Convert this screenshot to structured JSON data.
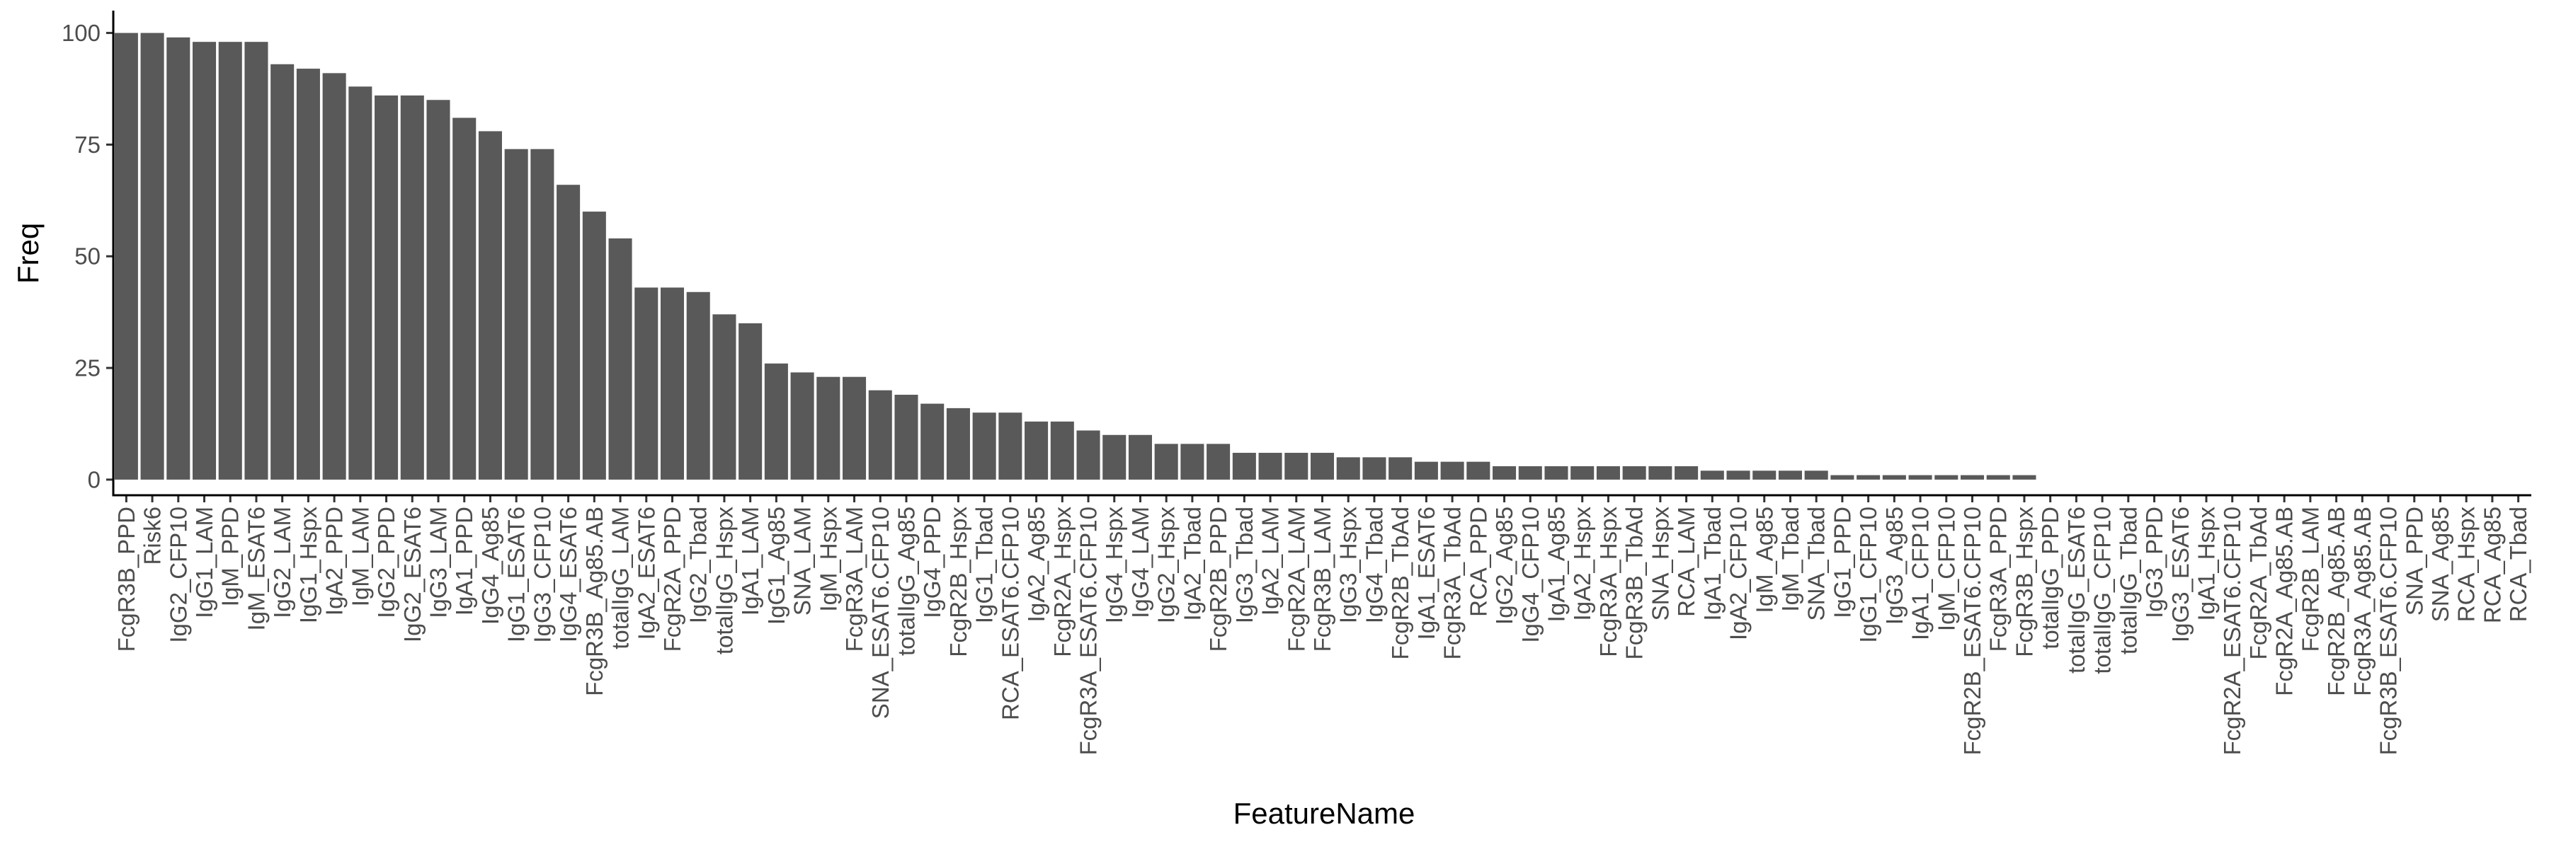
{
  "chart_data": {
    "type": "bar",
    "xlabel": "FeatureName",
    "ylabel": "Freq",
    "ylim": [
      -3.5,
      105
    ],
    "yticks": [
      0,
      25,
      50,
      75,
      100
    ],
    "grid": false,
    "bar_color": "#595959",
    "categories": [
      "FcgR3B_PPD",
      "Risk6",
      "IgG2_CFP10",
      "IgG1_LAM",
      "IgM_PPD",
      "IgM_ESAT6",
      "IgG2_LAM",
      "IgG1_Hspx",
      "IgA2_PPD",
      "IgM_LAM",
      "IgG2_PPD",
      "IgG2_ESAT6",
      "IgG3_LAM",
      "IgA1_PPD",
      "IgG4_Ag85",
      "IgG1_ESAT6",
      "IgG3_CFP10",
      "IgG4_ESAT6",
      "FcgR3B_Ag85.AB",
      "totalIgG_LAM",
      "IgA2_ESAT6",
      "FcgR2A_PPD",
      "IgG2_Tbad",
      "totalIgG_Hspx",
      "IgA1_LAM",
      "IgG1_Ag85",
      "SNA_LAM",
      "IgM_Hspx",
      "FcgR3A_LAM",
      "SNA_ESAT6.CFP10",
      "totalIgG_Ag85",
      "IgG4_PPD",
      "FcgR2B_Hspx",
      "IgG1_Tbad",
      "RCA_ESAT6.CFP10",
      "IgA2_Ag85",
      "FcgR2A_Hspx",
      "FcgR3A_ESAT6.CFP10",
      "IgG4_Hspx",
      "IgG4_LAM",
      "IgG2_Hspx",
      "IgA2_Tbad",
      "FcgR2B_PPD",
      "IgG3_Tbad",
      "IgA2_LAM",
      "FcgR2A_LAM",
      "FcgR3B_LAM",
      "IgG3_Hspx",
      "IgG4_Tbad",
      "FcgR2B_TbAd",
      "IgA1_ESAT6",
      "FcgR3A_TbAd",
      "RCA_PPD",
      "IgG2_Ag85",
      "IgG4_CFP10",
      "IgA1_Ag85",
      "IgA2_Hspx",
      "FcgR3A_Hspx",
      "FcgR3B_TbAd",
      "SNA_Hspx",
      "RCA_LAM",
      "IgA1_Tbad",
      "IgA2_CFP10",
      "IgM_Ag85",
      "IgM_Tbad",
      "SNA_Tbad",
      "IgG1_PPD",
      "IgG1_CFP10",
      "IgG3_Ag85",
      "IgA1_CFP10",
      "IgM_CFP10",
      "FcgR2B_ESAT6.CFP10",
      "FcgR3A_PPD",
      "FcgR3B_Hspx",
      "totalIgG_PPD",
      "totalIgG_ESAT6",
      "totalIgG_CFP10",
      "totalIgG_Tbad",
      "IgG3_PPD",
      "IgG3_ESAT6",
      "IgA1_Hspx",
      "FcgR2A_ESAT6.CFP10",
      "FcgR2A_TbAd",
      "FcgR2A_Ag85.AB",
      "FcgR2B_LAM",
      "FcgR2B_Ag85.AB",
      "FcgR3A_Ag85.AB",
      "FcgR3B_ESAT6.CFP10",
      "SNA_PPD",
      "SNA_Ag85",
      "RCA_Hspx",
      "RCA_Ag85",
      "RCA_Tbad"
    ],
    "values": [
      100,
      100,
      99,
      98,
      98,
      98,
      93,
      92,
      91,
      88,
      86,
      86,
      85,
      81,
      78,
      74,
      74,
      66,
      60,
      54,
      43,
      43,
      42,
      37,
      35,
      26,
      24,
      23,
      23,
      20,
      19,
      17,
      16,
      15,
      15,
      13,
      13,
      11,
      10,
      10,
      8,
      8,
      8,
      6,
      6,
      6,
      6,
      5,
      5,
      5,
      4,
      4,
      4,
      3,
      3,
      3,
      3,
      3,
      3,
      3,
      3,
      2,
      2,
      2,
      2,
      2,
      1,
      1,
      1,
      1,
      1,
      1,
      1,
      1,
      0,
      0,
      0,
      0,
      0,
      0,
      0,
      0,
      0,
      0,
      0,
      0,
      0,
      0,
      0,
      0,
      0,
      0,
      0
    ]
  }
}
